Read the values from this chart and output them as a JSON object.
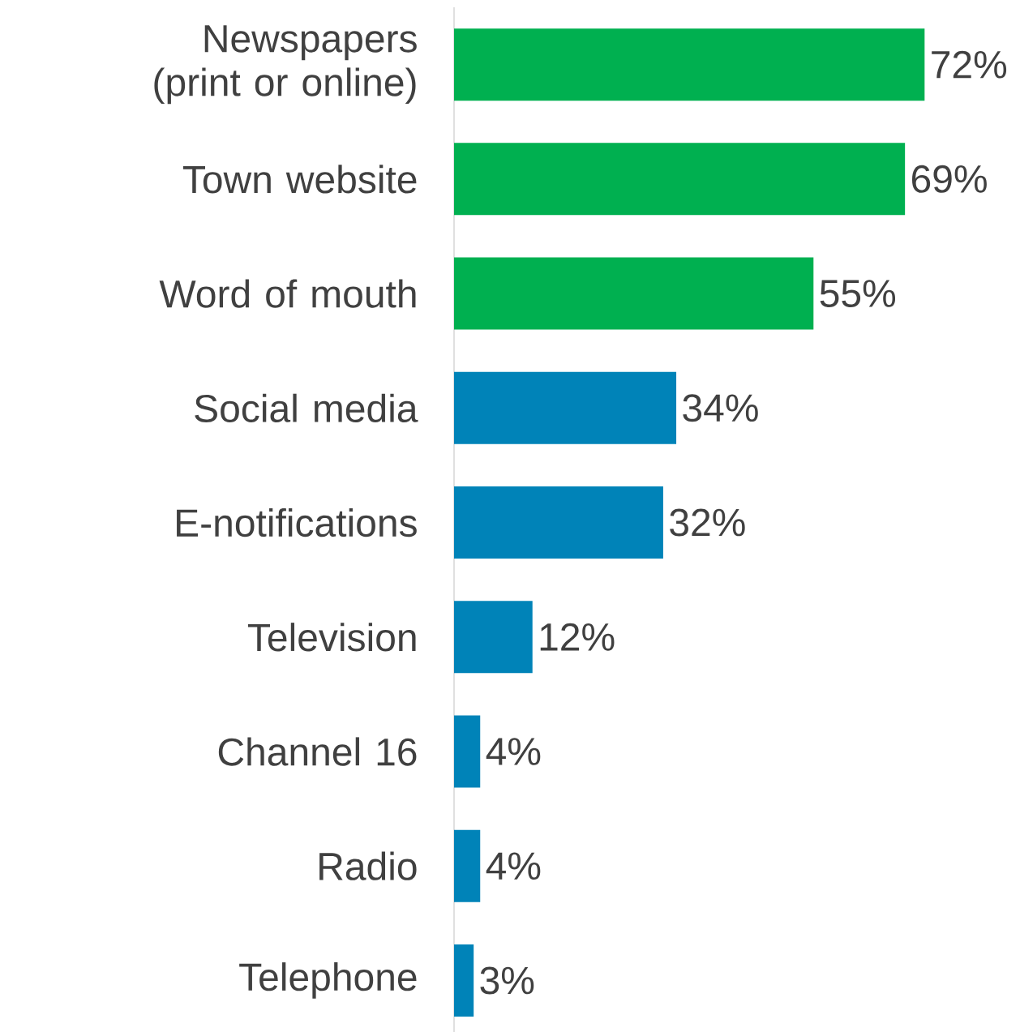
{
  "chart_data": {
    "type": "bar",
    "orientation": "horizontal",
    "categories": [
      "Newspapers (print or online)",
      "Town website",
      "Word of mouth",
      "Social media",
      "E-notifications",
      "Television",
      "Channel 16",
      "Radio",
      "Telephone"
    ],
    "values": [
      72,
      69,
      55,
      34,
      32,
      12,
      4,
      4,
      3
    ],
    "colors": [
      "#00b050",
      "#00b050",
      "#00b050",
      "#0083b8",
      "#0083b8",
      "#0083b8",
      "#0083b8",
      "#0083b8",
      "#0083b8"
    ],
    "value_labels": [
      "72%",
      "69%",
      "55%",
      "34%",
      "32%",
      "12%",
      "4%",
      "4%",
      "3%"
    ]
  }
}
